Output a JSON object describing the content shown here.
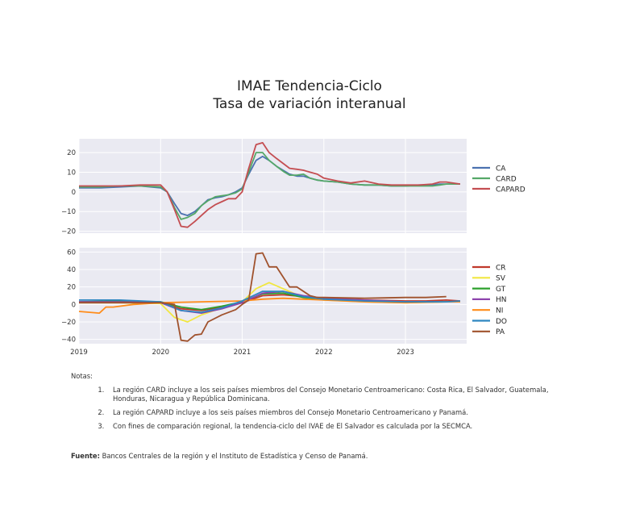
{
  "title": {
    "line1": "IMAE Tendencia-Ciclo",
    "line2": "Tasa de variación interanual"
  },
  "chart_data": [
    {
      "type": "line",
      "ylim": [
        -21,
        27
      ],
      "yticks": [
        -20,
        -10,
        0,
        10,
        20
      ],
      "xlim": [
        2019,
        2023.75
      ],
      "grid": true,
      "legend": "right",
      "series": [
        {
          "name": "CA",
          "color": "#4c72b0",
          "x": [
            2019,
            2019.25,
            2019.5,
            2019.75,
            2020,
            2020.08,
            2020.17,
            2020.25,
            2020.33,
            2020.42,
            2020.5,
            2020.58,
            2020.67,
            2020.75,
            2020.83,
            2020.92,
            2021,
            2021.08,
            2021.17,
            2021.25,
            2021.33,
            2021.42,
            2021.5,
            2021.58,
            2021.67,
            2021.75,
            2021.83,
            2021.92,
            2022,
            2022.17,
            2022.33,
            2022.5,
            2022.67,
            2022.83,
            2023,
            2023.17,
            2023.33,
            2023.42,
            2023.5,
            2023.67
          ],
          "y": [
            2,
            2,
            2.5,
            3,
            2,
            0,
            -6,
            -11,
            -12,
            -10,
            -7,
            -4,
            -3,
            -2.5,
            -1.5,
            0,
            2,
            9,
            16,
            18,
            16,
            13,
            11,
            9,
            8,
            8,
            7,
            6,
            5.5,
            5,
            4,
            3.5,
            3.5,
            3,
            3,
            3.5,
            3.5,
            4,
            4,
            4
          ]
        },
        {
          "name": "CARD",
          "color": "#55a868",
          "x": [
            2019,
            2019.25,
            2019.5,
            2019.75,
            2020,
            2020.08,
            2020.17,
            2020.25,
            2020.33,
            2020.42,
            2020.5,
            2020.58,
            2020.67,
            2020.75,
            2020.83,
            2020.92,
            2021,
            2021.08,
            2021.17,
            2021.25,
            2021.33,
            2021.42,
            2021.5,
            2021.58,
            2021.67,
            2021.75,
            2021.83,
            2021.92,
            2022,
            2022.17,
            2022.33,
            2022.5,
            2022.67,
            2022.83,
            2023,
            2023.17,
            2023.33,
            2023.42,
            2023.5,
            2023.67
          ],
          "y": [
            2.5,
            2.5,
            3,
            3,
            2.5,
            0,
            -8,
            -14,
            -13,
            -11,
            -7,
            -4.5,
            -2.5,
            -2,
            -1.5,
            -0.5,
            1.5,
            10,
            20,
            20,
            16,
            13,
            10.5,
            8.5,
            8.5,
            9,
            7,
            6,
            5.5,
            5,
            4,
            3.5,
            3.5,
            3,
            3,
            3,
            3,
            3.5,
            4,
            4
          ]
        },
        {
          "name": "CAPARD",
          "color": "#c44e52",
          "x": [
            2019,
            2019.25,
            2019.5,
            2019.75,
            2020,
            2020.08,
            2020.17,
            2020.25,
            2020.33,
            2020.42,
            2020.5,
            2020.58,
            2020.67,
            2020.75,
            2020.83,
            2020.92,
            2021,
            2021.08,
            2021.17,
            2021.25,
            2021.33,
            2021.42,
            2021.5,
            2021.58,
            2021.67,
            2021.75,
            2021.83,
            2021.92,
            2022,
            2022.17,
            2022.33,
            2022.5,
            2022.67,
            2022.83,
            2023,
            2023.17,
            2023.33,
            2023.42,
            2023.5,
            2023.67
          ],
          "y": [
            3,
            3,
            3,
            3.5,
            3.5,
            0,
            -9,
            -17.5,
            -18,
            -15,
            -12,
            -9,
            -6.5,
            -5,
            -3.5,
            -3.5,
            0,
            12,
            24,
            25,
            20,
            17,
            14.5,
            12,
            11.5,
            11,
            10,
            9,
            7,
            5.5,
            4.5,
            5.5,
            4,
            3.5,
            3.5,
            3.5,
            4,
            5,
            5,
            4
          ]
        }
      ]
    },
    {
      "type": "line",
      "ylim": [
        -45,
        65
      ],
      "yticks": [
        -40,
        -20,
        0,
        20,
        40,
        60
      ],
      "xlim": [
        2019,
        2023.75
      ],
      "xticks": [
        "2019",
        "2020",
        "2021",
        "2022",
        "2023"
      ],
      "grid": true,
      "legend": "right",
      "series": [
        {
          "name": "CR",
          "color": "#c0392b",
          "x": [
            2019,
            2019.5,
            2020,
            2020.25,
            2020.5,
            2020.75,
            2021,
            2021.25,
            2021.5,
            2021.75,
            2022,
            2022.5,
            2023,
            2023.25,
            2023.5,
            2023.67
          ],
          "y": [
            3,
            3,
            2,
            -5,
            -7,
            -3,
            2,
            10,
            11,
            9,
            7,
            5,
            4,
            4,
            5,
            4
          ]
        },
        {
          "name": "SV",
          "color": "#f1e740",
          "x": [
            2019,
            2019.5,
            2020,
            2020.17,
            2020.33,
            2020.5,
            2020.75,
            2021,
            2021.17,
            2021.33,
            2021.5,
            2021.75,
            2022,
            2022.5,
            2023,
            2023.5,
            2023.67
          ],
          "y": [
            2,
            2,
            1,
            -15,
            -20,
            -12,
            -4,
            3,
            18,
            25,
            18,
            8,
            5,
            3,
            2,
            3,
            3
          ]
        },
        {
          "name": "GT",
          "color": "#2ca02c",
          "x": [
            2019,
            2019.5,
            2020,
            2020.25,
            2020.5,
            2020.75,
            2021,
            2021.25,
            2021.5,
            2021.75,
            2022,
            2022.5,
            2023,
            2023.5,
            2023.67
          ],
          "y": [
            3,
            4,
            3,
            -3,
            -6,
            -2,
            3,
            12,
            13,
            8,
            6,
            4,
            3,
            3,
            3
          ]
        },
        {
          "name": "HN",
          "color": "#8e44ad",
          "x": [
            2019,
            2019.5,
            2020,
            2020.25,
            2020.5,
            2020.75,
            2021,
            2021.25,
            2021.5,
            2021.75,
            2022,
            2022.5,
            2023,
            2023.5,
            2023.67
          ],
          "y": [
            3,
            3,
            2,
            -7,
            -10,
            -5,
            2,
            13,
            15,
            10,
            7,
            5,
            3,
            3,
            3
          ]
        },
        {
          "name": "NI",
          "color": "#ff8c1a",
          "x": [
            2019,
            2019.25,
            2019.33,
            2019.42,
            2019.67,
            2020,
            2020.5,
            2021,
            2021.25,
            2021.5,
            2022,
            2022.5,
            2023,
            2023.5,
            2023.67
          ],
          "y": [
            -8,
            -10,
            -3,
            -3,
            0,
            2,
            3,
            4,
            6,
            7,
            5,
            3,
            2,
            3,
            3
          ]
        },
        {
          "name": "DO",
          "color": "#2e86c1",
          "x": [
            2019,
            2019.5,
            2020,
            2020.25,
            2020.5,
            2020.75,
            2021,
            2021.25,
            2021.5,
            2021.75,
            2022,
            2022.5,
            2023,
            2023.5,
            2023.67
          ],
          "y": [
            5,
            5,
            3,
            -7,
            -9,
            -4,
            4,
            15,
            15,
            9,
            6,
            4,
            3,
            3,
            4
          ]
        },
        {
          "name": "PA",
          "color": "#a0522d",
          "x": [
            2019,
            2019.5,
            2020,
            2020.17,
            2020.25,
            2020.33,
            2020.42,
            2020.5,
            2020.58,
            2020.75,
            2020.92,
            2021,
            2021.08,
            2021.17,
            2021.25,
            2021.33,
            2021.42,
            2021.58,
            2021.67,
            2021.83,
            2021.92,
            2022,
            2022.5,
            2023,
            2023.25,
            2023.5
          ],
          "y": [
            2,
            2,
            2,
            0,
            -41,
            -42,
            -35,
            -34,
            -20,
            -12,
            -6,
            0,
            5,
            58,
            59,
            43,
            43,
            20,
            20,
            10,
            8,
            8,
            7,
            8,
            8,
            9
          ]
        }
      ]
    }
  ],
  "notes": {
    "header": "Notas:",
    "items": [
      "La región CARD incluye a los seis países miembros del Consejo Monetario Centroamericano: Costa Rica, El Salvador, Guatemala, Honduras, Nicaragua y República Dominicana.",
      "La región CAPARD incluye a los seis países miembros del Consejo Monetario Centroamericano y Panamá.",
      "Con fines de comparación regional, la tendencia-ciclo del IVAE de El Salvador es calculada por la SECMCA."
    ]
  },
  "source": {
    "label": "Fuente:",
    "text": " Bancos Centrales de la región y el Instituto de Estadística y Censo de Panamá."
  }
}
